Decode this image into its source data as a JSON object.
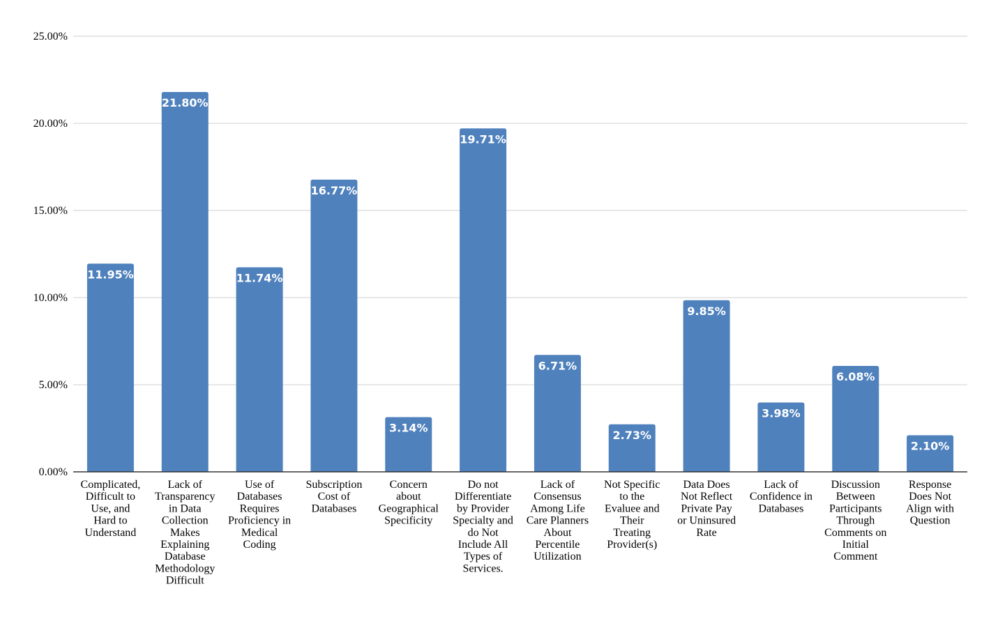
{
  "chart_data": {
    "type": "bar",
    "title": "",
    "xlabel": "",
    "ylabel": "",
    "ylim": [
      0,
      25
    ],
    "grid": true,
    "legend": "none",
    "bar_color": "#4f81bd",
    "y_ticks": [
      "0.00%",
      "5.00%",
      "10.00%",
      "15.00%",
      "20.00%",
      "25.00%"
    ],
    "categories": [
      [
        "Complicated,",
        "Difficult to",
        "Use, and",
        "Hard to",
        "Understand"
      ],
      [
        "Lack of",
        "Transparency",
        "in Data",
        "Collection",
        "Makes",
        "Explaining",
        "Database",
        "Methodology",
        "Difficult"
      ],
      [
        "Use of",
        "Databases",
        "Requires",
        "Proficiency in",
        "Medical",
        "Coding"
      ],
      [
        "Subscription",
        "Cost of",
        "Databases"
      ],
      [
        "Concern",
        "about",
        "Geographical",
        "Specificity"
      ],
      [
        "Do not",
        "Differentiate",
        "by Provider",
        "Specialty and",
        "do Not",
        "Include All",
        "Types of",
        "Services."
      ],
      [
        "Lack of",
        "Consensus",
        "Among Life",
        "Care Planners",
        "About",
        "Percentile",
        "Utilization"
      ],
      [
        "Not Specific",
        "to the",
        "Evaluee and",
        "Their",
        "Treating",
        "Provider(s)"
      ],
      [
        "Data Does",
        "Not Reflect",
        "Private Pay",
        "or Uninsured",
        "Rate"
      ],
      [
        "Lack of",
        "Confidence in",
        "Databases"
      ],
      [
        "Discussion",
        "Between",
        "Participants",
        "Through",
        "Comments on",
        "Initial",
        "Comment"
      ],
      [
        "Response",
        "Does Not",
        "Align with",
        "Question"
      ]
    ],
    "values": [
      11.95,
      21.8,
      11.74,
      16.77,
      3.14,
      19.71,
      6.71,
      2.73,
      9.85,
      3.98,
      6.08,
      2.1
    ],
    "data_labels": [
      "11.95%",
      "21.80%",
      "11.74%",
      "16.77%",
      "3.14%",
      "19.71%",
      "6.71%",
      "2.73%",
      "9.85%",
      "3.98%",
      "6.08%",
      "2.10%"
    ]
  }
}
